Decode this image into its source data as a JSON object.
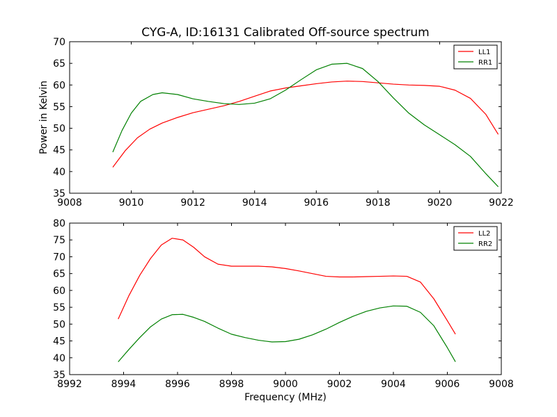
{
  "figure": {
    "title": "CYG-A, ID:16131 Calibrated Off-source spectrum",
    "xlabel": "Frequency (MHz)",
    "ylabel": "Power in Kelvin"
  },
  "chart_data": [
    {
      "type": "line",
      "title": "CYG-A, ID:16131 Calibrated Off-source spectrum",
      "xlabel": "",
      "ylabel": "Power in Kelvin",
      "xlim": [
        9008,
        9022
      ],
      "ylim": [
        35,
        70
      ],
      "xticks": [
        9008,
        9010,
        9012,
        9014,
        9016,
        9018,
        9020,
        9022
      ],
      "yticks": [
        35,
        40,
        45,
        50,
        55,
        60,
        65,
        70
      ],
      "legend_position": "top-right",
      "grid": false,
      "series": [
        {
          "name": "LL1",
          "color": "#ff0000",
          "x": [
            9009.4,
            9009.8,
            9010.2,
            9010.6,
            9011.0,
            9011.5,
            9012.0,
            9012.5,
            9013.0,
            9013.5,
            9014.0,
            9014.5,
            9015.0,
            9015.5,
            9016.0,
            9016.5,
            9017.0,
            9017.5,
            9018.0,
            9018.5,
            9019.0,
            9019.5,
            9020.0,
            9020.5,
            9021.0,
            9021.5,
            9021.9
          ],
          "y": [
            41.0,
            44.8,
            47.8,
            49.8,
            51.2,
            52.5,
            53.6,
            54.4,
            55.2,
            56.2,
            57.4,
            58.6,
            59.3,
            59.8,
            60.3,
            60.7,
            60.9,
            60.8,
            60.5,
            60.2,
            60.0,
            59.9,
            59.7,
            58.8,
            56.9,
            53.2,
            48.6
          ]
        },
        {
          "name": "RR1",
          "color": "#008000",
          "x": [
            9009.4,
            9009.7,
            9010.0,
            9010.3,
            9010.7,
            9011.0,
            9011.5,
            9012.0,
            9012.5,
            9013.0,
            9013.5,
            9014.0,
            9014.5,
            9015.0,
            9015.5,
            9016.0,
            9016.5,
            9017.0,
            9017.5,
            9018.0,
            9018.5,
            9019.0,
            9019.5,
            9020.0,
            9020.5,
            9021.0,
            9021.5,
            9021.9
          ],
          "y": [
            44.5,
            49.5,
            53.5,
            56.2,
            57.8,
            58.2,
            57.8,
            56.8,
            56.2,
            55.7,
            55.5,
            55.8,
            56.8,
            58.8,
            61.2,
            63.5,
            64.8,
            65.0,
            63.8,
            60.8,
            57.0,
            53.5,
            50.8,
            48.5,
            46.2,
            43.5,
            39.5,
            36.5
          ]
        }
      ]
    },
    {
      "type": "line",
      "title": "",
      "xlabel": "Frequency (MHz)",
      "ylabel": "",
      "xlim": [
        8992,
        9008
      ],
      "ylim": [
        35,
        80
      ],
      "xticks": [
        8992,
        8994,
        8996,
        8998,
        9000,
        9002,
        9004,
        9006,
        9008
      ],
      "yticks": [
        35,
        40,
        45,
        50,
        55,
        60,
        65,
        70,
        75,
        80
      ],
      "legend_position": "top-right",
      "grid": false,
      "series": [
        {
          "name": "LL2",
          "color": "#ff0000",
          "x": [
            8993.8,
            8994.2,
            8994.6,
            8995.0,
            8995.4,
            8995.8,
            8996.2,
            8996.6,
            8997.0,
            8997.5,
            8998.0,
            8998.5,
            8999.0,
            8999.5,
            9000.0,
            9000.5,
            9001.0,
            9001.5,
            9002.0,
            9002.5,
            9003.0,
            9003.5,
            9004.0,
            9004.5,
            9005.0,
            9005.5,
            9006.0,
            9006.3
          ],
          "y": [
            51.5,
            58.5,
            64.5,
            69.5,
            73.5,
            75.5,
            75.0,
            72.8,
            70.0,
            67.8,
            67.2,
            67.2,
            67.2,
            67.0,
            66.5,
            65.8,
            65.0,
            64.2,
            64.0,
            64.0,
            64.1,
            64.2,
            64.3,
            64.2,
            62.5,
            57.5,
            51.0,
            47.0
          ]
        },
        {
          "name": "RR2",
          "color": "#008000",
          "x": [
            8993.8,
            8994.2,
            8994.6,
            8995.0,
            8995.4,
            8995.8,
            8996.2,
            8996.6,
            8997.0,
            8997.5,
            8998.0,
            8998.5,
            8999.0,
            8999.5,
            9000.0,
            9000.5,
            9001.0,
            9001.5,
            9002.0,
            9002.5,
            9003.0,
            9003.5,
            9004.0,
            9004.5,
            9005.0,
            9005.5,
            9006.0,
            9006.3
          ],
          "y": [
            38.8,
            42.5,
            46.0,
            49.2,
            51.5,
            52.8,
            52.9,
            52.0,
            50.8,
            48.8,
            47.0,
            46.0,
            45.2,
            44.7,
            44.8,
            45.5,
            46.8,
            48.5,
            50.5,
            52.3,
            53.8,
            54.8,
            55.4,
            55.3,
            53.5,
            49.5,
            43.0,
            38.8
          ]
        }
      ]
    }
  ]
}
